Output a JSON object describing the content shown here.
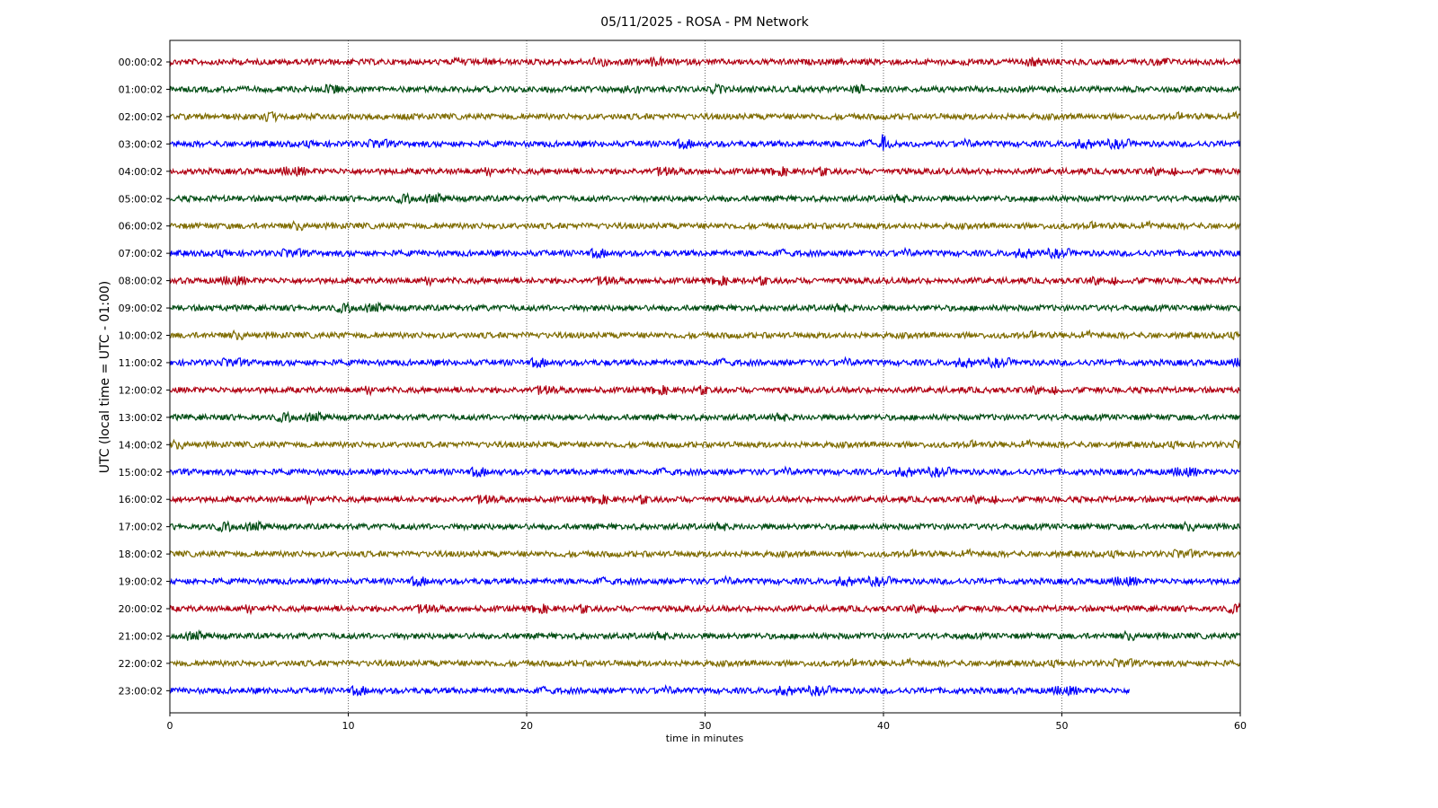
{
  "chart_data": {
    "type": "line",
    "title": "05/11/2025 - ROSA - PM Network",
    "xlabel": "time in minutes",
    "ylabel": "UTC (local time = UTC - 01:00)",
    "xlim": [
      0,
      60
    ],
    "xticks": [
      "0",
      "10",
      "20",
      "30",
      "40",
      "50",
      "60"
    ],
    "grid": "vertical dotted",
    "colors": [
      "#b00012",
      "#024d14",
      "#7e6b00",
      "#0000ff"
    ],
    "rows": [
      {
        "label": "00:00:02",
        "end": 60
      },
      {
        "label": "01:00:02",
        "end": 60
      },
      {
        "label": "02:00:02",
        "end": 60
      },
      {
        "label": "03:00:02",
        "end": 60,
        "event_minute": 39.9
      },
      {
        "label": "04:00:02",
        "end": 60
      },
      {
        "label": "05:00:02",
        "end": 60
      },
      {
        "label": "06:00:02",
        "end": 60
      },
      {
        "label": "07:00:02",
        "end": 60
      },
      {
        "label": "08:00:02",
        "end": 60
      },
      {
        "label": "09:00:02",
        "end": 60
      },
      {
        "label": "10:00:02",
        "end": 60
      },
      {
        "label": "11:00:02",
        "end": 60
      },
      {
        "label": "12:00:02",
        "end": 60
      },
      {
        "label": "13:00:02",
        "end": 60
      },
      {
        "label": "14:00:02",
        "end": 60
      },
      {
        "label": "15:00:02",
        "end": 60
      },
      {
        "label": "16:00:02",
        "end": 60
      },
      {
        "label": "17:00:02",
        "end": 60
      },
      {
        "label": "18:00:02",
        "end": 60
      },
      {
        "label": "19:00:02",
        "end": 60
      },
      {
        "label": "20:00:02",
        "end": 60
      },
      {
        "label": "21:00:02",
        "end": 60
      },
      {
        "label": "22:00:02",
        "end": 60
      },
      {
        "label": "23:00:02",
        "end": 53.8
      }
    ]
  }
}
